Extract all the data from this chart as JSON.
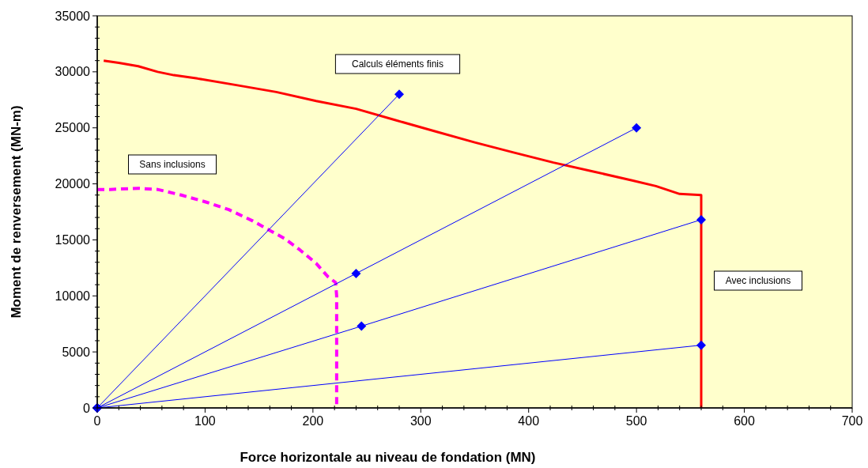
{
  "chart_data": {
    "type": "line",
    "xlabel": "Force horizontale au niveau de fondation (MN)",
    "ylabel": "Moment de renversement  (MN-m)",
    "xlim": [
      0,
      700
    ],
    "ylim": [
      0,
      35000
    ],
    "xticks": [
      0,
      {
        "value": 20,
        "label": null
      },
      {
        "value": 40,
        "label": null
      },
      {
        "value": 60,
        "label": null
      },
      {
        "value": 80,
        "label": null
      },
      100,
      {
        "value": 120,
        "label": null
      },
      {
        "value": 140,
        "label": null
      },
      {
        "value": 160,
        "label": null
      },
      {
        "value": 180,
        "label": null
      },
      200,
      {
        "value": 220,
        "label": null
      },
      {
        "value": 240,
        "label": null
      },
      {
        "value": 260,
        "label": null
      },
      {
        "value": 280,
        "label": null
      },
      300,
      {
        "value": 320,
        "label": null
      },
      {
        "value": 340,
        "label": null
      },
      {
        "value": 360,
        "label": null
      },
      {
        "value": 380,
        "label": null
      },
      400,
      {
        "value": 420,
        "label": null
      },
      {
        "value": 440,
        "label": null
      },
      {
        "value": 460,
        "label": null
      },
      {
        "value": 480,
        "label": null
      },
      500,
      {
        "value": 520,
        "label": null
      },
      {
        "value": 540,
        "label": null
      },
      {
        "value": 560,
        "label": null
      },
      {
        "value": 580,
        "label": null
      },
      600,
      {
        "value": 620,
        "label": null
      },
      {
        "value": 640,
        "label": null
      },
      {
        "value": 660,
        "label": null
      },
      {
        "value": 680,
        "label": null
      },
      700
    ],
    "yticks": [
      0,
      {
        "value": 1000,
        "label": null
      },
      {
        "value": 2000,
        "label": null
      },
      {
        "value": 3000,
        "label": null
      },
      {
        "value": 4000,
        "label": null
      },
      5000,
      {
        "value": 6000,
        "label": null
      },
      {
        "value": 7000,
        "label": null
      },
      {
        "value": 8000,
        "label": null
      },
      {
        "value": 9000,
        "label": null
      },
      10000,
      {
        "value": 11000,
        "label": null
      },
      {
        "value": 12000,
        "label": null
      },
      {
        "value": 13000,
        "label": null
      },
      {
        "value": 14000,
        "label": null
      },
      15000,
      {
        "value": 16000,
        "label": null
      },
      {
        "value": 17000,
        "label": null
      },
      {
        "value": 18000,
        "label": null
      },
      {
        "value": 19000,
        "label": null
      },
      20000,
      {
        "value": 21000,
        "label": null
      },
      {
        "value": 22000,
        "label": null
      },
      {
        "value": 23000,
        "label": null
      },
      {
        "value": 24000,
        "label": null
      },
      25000,
      {
        "value": 26000,
        "label": null
      },
      {
        "value": 27000,
        "label": null
      },
      {
        "value": 28000,
        "label": null
      },
      {
        "value": 29000,
        "label": null
      },
      30000,
      {
        "value": 31000,
        "label": null
      },
      {
        "value": 32000,
        "label": null
      },
      {
        "value": 33000,
        "label": null
      },
      {
        "value": 34000,
        "label": null
      },
      35000
    ],
    "grid": false,
    "series": [
      {
        "color": "#ff0000",
        "marker": "none",
        "line_style": "solid",
        "x": [
          6,
          20,
          38,
          56,
          71,
          93,
          130,
          166,
          203,
          240,
          276,
          313,
          350,
          386,
          423,
          460,
          496,
          518,
          540,
          560,
          560
        ],
        "values": [
          31000,
          30800,
          30500,
          30000,
          29700,
          29400,
          28800,
          28200,
          27400,
          26700,
          25700,
          24700,
          23700,
          22800,
          21900,
          21100,
          20300,
          19800,
          19100,
          19000,
          0
        ]
      },
      {
        "color": "#ff00ff",
        "marker": "none",
        "line_style": "dashed",
        "x": [
          0,
          12,
          38,
          56,
          78,
          100,
          122,
          144,
          159,
          174,
          188,
          203,
          214,
          221,
          222,
          222
        ],
        "values": [
          19500,
          19500,
          19600,
          19500,
          19000,
          18400,
          17700,
          16700,
          15900,
          15100,
          14100,
          12900,
          11700,
          11200,
          10000,
          0
        ]
      },
      {
        "color": "#0000ff",
        "marker": "diamond",
        "line_style": "solid",
        "x": [
          0,
          280
        ],
        "values": [
          0,
          28000
        ]
      },
      {
        "color": "#0000ff",
        "marker": "diamond",
        "line_style": "solid",
        "x": [
          0,
          240,
          500
        ],
        "values": [
          0,
          12000,
          25000
        ]
      },
      {
        "color": "#0000ff",
        "marker": "diamond",
        "line_style": "solid",
        "x": [
          0,
          245,
          560
        ],
        "values": [
          0,
          7300,
          16800
        ]
      },
      {
        "color": "#0000ff",
        "marker": "diamond",
        "line_style": "solid",
        "x": [
          0,
          560
        ],
        "values": [
          0,
          5600
        ]
      }
    ],
    "annotations": [
      "Calculs éléments finis",
      "Sans inclusions",
      "Avec inclusions"
    ]
  }
}
